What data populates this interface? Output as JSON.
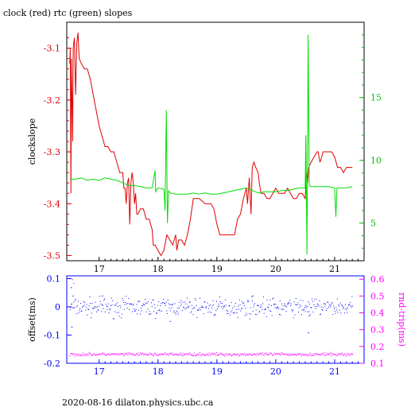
{
  "title": "clock (red) rtc (green) slopes",
  "footer": "2020-08-16  dilaton.physics.ubc.ca",
  "colors": {
    "clock": "#e00000",
    "rtc": "#00e000",
    "offset": "#0000ff",
    "rtt": "#ff00ff",
    "frame": "#000000"
  },
  "chart_data": [
    {
      "type": "line",
      "title": "clock (red) rtc (green) slopes",
      "xlim": [
        16.45,
        21.5
      ],
      "x_ticks": [
        "17",
        "18",
        "19",
        "20",
        "21"
      ],
      "ylabel": "clockslope",
      "ylim": [
        -3.51,
        -3.05
      ],
      "y_ticks": [
        "-3.1",
        "-3.2",
        "-3.3",
        "-3.4",
        "-3.5"
      ],
      "y2lim": [
        2.0,
        21.0
      ],
      "y2_ticks": [
        "5",
        "10",
        "15"
      ],
      "grid": false,
      "series": [
        {
          "name": "clock",
          "axis": "left",
          "points": [
            [
              16.5,
              -3.13
            ],
            [
              16.51,
              -3.1
            ],
            [
              16.52,
              -3.38
            ],
            [
              16.53,
              -3.12
            ],
            [
              16.55,
              -3.28
            ],
            [
              16.56,
              -3.1
            ],
            [
              16.58,
              -3.08
            ],
            [
              16.6,
              -3.19
            ],
            [
              16.62,
              -3.09
            ],
            [
              16.64,
              -3.07
            ],
            [
              16.66,
              -3.12
            ],
            [
              16.7,
              -3.13
            ],
            [
              16.75,
              -3.14
            ],
            [
              16.8,
              -3.14
            ],
            [
              16.85,
              -3.16
            ],
            [
              16.9,
              -3.19
            ],
            [
              16.95,
              -3.22
            ],
            [
              17.0,
              -3.25
            ],
            [
              17.05,
              -3.27
            ],
            [
              17.1,
              -3.29
            ],
            [
              17.15,
              -3.29
            ],
            [
              17.2,
              -3.3
            ],
            [
              17.25,
              -3.3
            ],
            [
              17.3,
              -3.32
            ],
            [
              17.35,
              -3.34
            ],
            [
              17.4,
              -3.34
            ],
            [
              17.42,
              -3.37
            ],
            [
              17.44,
              -3.37
            ],
            [
              17.46,
              -3.4
            ],
            [
              17.48,
              -3.36
            ],
            [
              17.5,
              -3.35
            ],
            [
              17.52,
              -3.44
            ],
            [
              17.54,
              -3.36
            ],
            [
              17.56,
              -3.34
            ],
            [
              17.58,
              -3.36
            ],
            [
              17.6,
              -3.4
            ],
            [
              17.62,
              -3.38
            ],
            [
              17.64,
              -3.42
            ],
            [
              17.66,
              -3.42
            ],
            [
              17.7,
              -3.41
            ],
            [
              17.75,
              -3.41
            ],
            [
              17.8,
              -3.43
            ],
            [
              17.85,
              -3.43
            ],
            [
              17.9,
              -3.45
            ],
            [
              17.92,
              -3.48
            ],
            [
              17.95,
              -3.48
            ],
            [
              18.0,
              -3.49
            ],
            [
              18.05,
              -3.5
            ],
            [
              18.1,
              -3.49
            ],
            [
              18.15,
              -3.46
            ],
            [
              18.2,
              -3.47
            ],
            [
              18.25,
              -3.48
            ],
            [
              18.3,
              -3.46
            ],
            [
              18.32,
              -3.49
            ],
            [
              18.35,
              -3.47
            ],
            [
              18.4,
              -3.47
            ],
            [
              18.45,
              -3.48
            ],
            [
              18.5,
              -3.46
            ],
            [
              18.55,
              -3.43
            ],
            [
              18.6,
              -3.39
            ],
            [
              18.7,
              -3.39
            ],
            [
              18.8,
              -3.4
            ],
            [
              18.9,
              -3.4
            ],
            [
              18.95,
              -3.41
            ],
            [
              19.0,
              -3.44
            ],
            [
              19.05,
              -3.46
            ],
            [
              19.1,
              -3.46
            ],
            [
              19.2,
              -3.46
            ],
            [
              19.3,
              -3.46
            ],
            [
              19.35,
              -3.43
            ],
            [
              19.4,
              -3.42
            ],
            [
              19.45,
              -3.39
            ],
            [
              19.5,
              -3.37
            ],
            [
              19.52,
              -3.4
            ],
            [
              19.55,
              -3.35
            ],
            [
              19.58,
              -3.42
            ],
            [
              19.6,
              -3.33
            ],
            [
              19.63,
              -3.32
            ],
            [
              19.66,
              -3.33
            ],
            [
              19.7,
              -3.34
            ],
            [
              19.72,
              -3.36
            ],
            [
              19.75,
              -3.38
            ],
            [
              19.8,
              -3.38
            ],
            [
              19.85,
              -3.39
            ],
            [
              19.9,
              -3.39
            ],
            [
              19.95,
              -3.38
            ],
            [
              20.0,
              -3.37
            ],
            [
              20.05,
              -3.38
            ],
            [
              20.1,
              -3.38
            ],
            [
              20.15,
              -3.38
            ],
            [
              20.2,
              -3.37
            ],
            [
              20.25,
              -3.38
            ],
            [
              20.3,
              -3.39
            ],
            [
              20.35,
              -3.39
            ],
            [
              20.4,
              -3.38
            ],
            [
              20.45,
              -3.38
            ],
            [
              20.5,
              -3.39
            ],
            [
              20.52,
              -3.34
            ],
            [
              20.54,
              -3.36
            ],
            [
              20.56,
              -3.33
            ],
            [
              20.6,
              -3.32
            ],
            [
              20.65,
              -3.31
            ],
            [
              20.7,
              -3.3
            ],
            [
              20.72,
              -3.3
            ],
            [
              20.75,
              -3.32
            ],
            [
              20.78,
              -3.31
            ],
            [
              20.8,
              -3.3
            ],
            [
              20.85,
              -3.3
            ],
            [
              20.9,
              -3.3
            ],
            [
              20.95,
              -3.3
            ],
            [
              21.0,
              -3.31
            ],
            [
              21.05,
              -3.33
            ],
            [
              21.1,
              -3.33
            ],
            [
              21.15,
              -3.34
            ],
            [
              21.2,
              -3.33
            ],
            [
              21.25,
              -3.33
            ],
            [
              21.3,
              -3.33
            ]
          ]
        },
        {
          "name": "rtc",
          "axis": "right",
          "points": [
            [
              16.5,
              8.5
            ],
            [
              16.6,
              8.5
            ],
            [
              16.7,
              8.6
            ],
            [
              16.8,
              8.4
            ],
            [
              16.9,
              8.5
            ],
            [
              17.0,
              8.4
            ],
            [
              17.1,
              8.6
            ],
            [
              17.2,
              8.5
            ],
            [
              17.3,
              8.4
            ],
            [
              17.4,
              8.2
            ],
            [
              17.5,
              8.0
            ],
            [
              17.6,
              8.0
            ],
            [
              17.7,
              7.9
            ],
            [
              17.8,
              7.8
            ],
            [
              17.9,
              7.8
            ],
            [
              17.95,
              9.2
            ],
            [
              17.96,
              7.5
            ],
            [
              18.0,
              7.8
            ],
            [
              18.1,
              7.7
            ],
            [
              18.12,
              6.0
            ],
            [
              18.14,
              14.0
            ],
            [
              18.16,
              5.0
            ],
            [
              18.18,
              7.6
            ],
            [
              18.2,
              7.4
            ],
            [
              18.3,
              7.3
            ],
            [
              18.4,
              7.3
            ],
            [
              18.5,
              7.3
            ],
            [
              18.6,
              7.4
            ],
            [
              18.7,
              7.3
            ],
            [
              18.8,
              7.4
            ],
            [
              18.9,
              7.3
            ],
            [
              19.0,
              7.3
            ],
            [
              19.1,
              7.4
            ],
            [
              19.2,
              7.5
            ],
            [
              19.3,
              7.6
            ],
            [
              19.4,
              7.7
            ],
            [
              19.5,
              7.8
            ],
            [
              19.6,
              7.6
            ],
            [
              19.7,
              7.4
            ],
            [
              19.8,
              7.5
            ],
            [
              19.9,
              7.5
            ],
            [
              20.0,
              7.5
            ],
            [
              20.1,
              7.6
            ],
            [
              20.2,
              7.6
            ],
            [
              20.3,
              7.7
            ],
            [
              20.4,
              7.8
            ],
            [
              20.5,
              7.8
            ],
            [
              20.51,
              12.0
            ],
            [
              20.53,
              2.5
            ],
            [
              20.55,
              20.0
            ],
            [
              20.57,
              8.0
            ],
            [
              20.6,
              7.9
            ],
            [
              20.7,
              7.9
            ],
            [
              20.8,
              7.9
            ],
            [
              20.9,
              7.9
            ],
            [
              21.0,
              7.8
            ],
            [
              21.02,
              5.5
            ],
            [
              21.04,
              7.8
            ],
            [
              21.1,
              7.8
            ],
            [
              21.2,
              7.8
            ],
            [
              21.3,
              7.9
            ]
          ]
        }
      ]
    },
    {
      "type": "scatter",
      "xlim": [
        16.45,
        21.5
      ],
      "x_ticks": [
        "17",
        "18",
        "19",
        "20",
        "21"
      ],
      "ylabel": "offset(ms)",
      "ylim": [
        -0.2,
        0.11
      ],
      "y_ticks": [
        "0.1",
        "0",
        "-0.1",
        "-0.2"
      ],
      "y2label": "rnd-trip(ms)",
      "y2lim": [
        0.1,
        0.62
      ],
      "y2_ticks": [
        "0.6",
        "0.5",
        "0.4",
        "0.3",
        "0.2",
        "0.1"
      ],
      "series": [
        {
          "name": "offset",
          "axis": "left",
          "x_start": 16.5,
          "x_end": 21.3,
          "center": 0.0,
          "spread": 0.02,
          "outliers": [
            [
              16.52,
              0.07
            ],
            [
              16.53,
              -0.07
            ],
            [
              16.55,
              0.04
            ],
            [
              20.55,
              -0.09
            ],
            [
              20.56,
              -0.03
            ],
            [
              17.05,
              0.04
            ],
            [
              18.2,
              -0.05
            ],
            [
              19.6,
              0.04
            ]
          ]
        },
        {
          "name": "rnd-trip",
          "axis": "right",
          "x_start": 16.5,
          "x_end": 21.3,
          "center": 0.155,
          "spread": 0.006,
          "outliers": [
            [
              16.54,
              0.6
            ],
            [
              16.56,
              0.58
            ]
          ]
        }
      ]
    }
  ]
}
